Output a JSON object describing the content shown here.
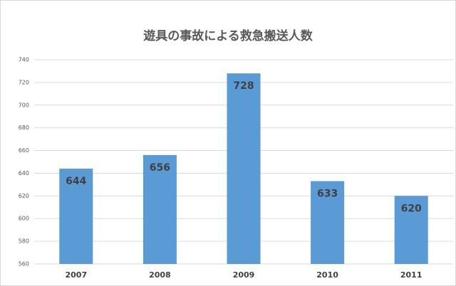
{
  "chart_data": {
    "type": "bar",
    "title": "遊具の事故による救急搬送人数",
    "categories": [
      "2007",
      "2008",
      "2009",
      "2010",
      "2011"
    ],
    "values": [
      644,
      656,
      728,
      633,
      620
    ],
    "color": "#5b9bd5",
    "ylim": [
      560,
      740
    ],
    "yticks": [
      560,
      580,
      600,
      620,
      640,
      660,
      680,
      700,
      720,
      740
    ],
    "grid": true
  }
}
